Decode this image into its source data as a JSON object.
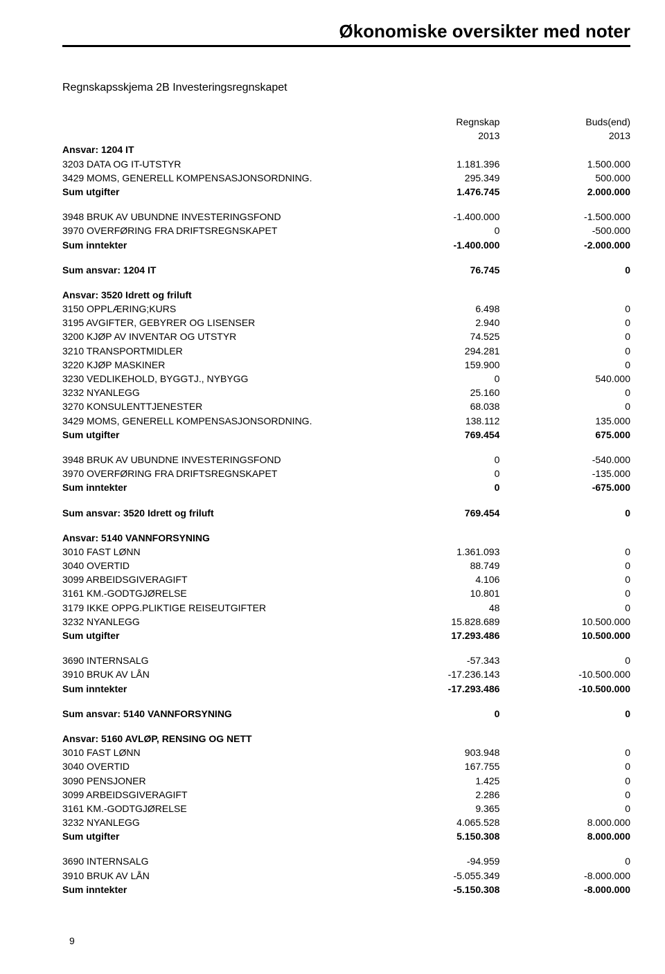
{
  "header": {
    "title": "Økonomiske oversikter med noter"
  },
  "section_title": "Regnskapsskjema 2B Investeringsregnskapet",
  "columns": {
    "c1_line1": "Regnskap",
    "c1_line2": "2013",
    "c2_line1": "Buds(end)",
    "c2_line2": "2013"
  },
  "blocks": [
    {
      "heading": "Ansvar: 1204 IT",
      "rows": [
        {
          "label": "3203 DATA OG IT-UTSTYR",
          "v1": "1.181.396",
          "v2": "1.500.000"
        },
        {
          "label": "3429 MOMS, GENERELL KOMPENSASJONSORDNING.",
          "v1": "295.349",
          "v2": "500.000"
        }
      ],
      "sum_out": {
        "label": "Sum utgifter",
        "v1": "1.476.745",
        "v2": "2.000.000"
      },
      "rows2": [
        {
          "label": "3948 BRUK AV UBUNDNE INVESTERINGSFOND",
          "v1": "-1.400.000",
          "v2": "-1.500.000"
        },
        {
          "label": "3970 OVERFØRING FRA DRIFTSREGNSKAPET",
          "v1": "0",
          "v2": "-500.000"
        }
      ],
      "sum_in": {
        "label": "Sum inntekter",
        "v1": "-1.400.000",
        "v2": "-2.000.000"
      },
      "sum_ansvar": {
        "label": "Sum ansvar: 1204 IT",
        "v1": "76.745",
        "v2": "0"
      }
    },
    {
      "heading": "Ansvar: 3520 Idrett og friluft",
      "rows": [
        {
          "label": "3150 OPPLÆRING;KURS",
          "v1": "6.498",
          "v2": "0"
        },
        {
          "label": "3195 AVGIFTER, GEBYRER OG LISENSER",
          "v1": "2.940",
          "v2": "0"
        },
        {
          "label": "3200 KJØP AV INVENTAR OG UTSTYR",
          "v1": "74.525",
          "v2": "0"
        },
        {
          "label": "3210 TRANSPORTMIDLER",
          "v1": "294.281",
          "v2": "0"
        },
        {
          "label": "3220 KJØP MASKINER",
          "v1": "159.900",
          "v2": "0"
        },
        {
          "label": "3230 VEDLIKEHOLD, BYGGTJ., NYBYGG",
          "v1": "0",
          "v2": "540.000"
        },
        {
          "label": "3232 NYANLEGG",
          "v1": "25.160",
          "v2": "0"
        },
        {
          "label": "3270 KONSULENTTJENESTER",
          "v1": "68.038",
          "v2": "0"
        },
        {
          "label": "3429 MOMS, GENERELL KOMPENSASJONSORDNING.",
          "v1": "138.112",
          "v2": "135.000"
        }
      ],
      "sum_out": {
        "label": "Sum utgifter",
        "v1": "769.454",
        "v2": "675.000"
      },
      "rows2": [
        {
          "label": "3948 BRUK AV UBUNDNE INVESTERINGSFOND",
          "v1": "0",
          "v2": "-540.000"
        },
        {
          "label": "3970 OVERFØRING FRA DRIFTSREGNSKAPET",
          "v1": "0",
          "v2": "-135.000"
        }
      ],
      "sum_in": {
        "label": "Sum inntekter",
        "v1": "0",
        "v2": "-675.000"
      },
      "sum_ansvar": {
        "label": "Sum ansvar: 3520 Idrett og friluft",
        "v1": "769.454",
        "v2": "0"
      }
    },
    {
      "heading": "Ansvar: 5140 VANNFORSYNING",
      "rows": [
        {
          "label": "3010 FAST LØNN",
          "v1": "1.361.093",
          "v2": "0"
        },
        {
          "label": "3040 OVERTID",
          "v1": "88.749",
          "v2": "0"
        },
        {
          "label": "3099 ARBEIDSGIVERAGIFT",
          "v1": "4.106",
          "v2": "0"
        },
        {
          "label": "3161 KM.-GODTGJØRELSE",
          "v1": "10.801",
          "v2": "0"
        },
        {
          "label": "3179 IKKE OPPG.PLIKTIGE REISEUTGIFTER",
          "v1": "48",
          "v2": "0"
        },
        {
          "label": "3232 NYANLEGG",
          "v1": "15.828.689",
          "v2": "10.500.000"
        }
      ],
      "sum_out": {
        "label": "Sum utgifter",
        "v1": "17.293.486",
        "v2": "10.500.000"
      },
      "rows2": [
        {
          "label": "3690 INTERNSALG",
          "v1": "-57.343",
          "v2": "0"
        },
        {
          "label": "3910 BRUK AV LÅN",
          "v1": "-17.236.143",
          "v2": "-10.500.000"
        }
      ],
      "sum_in": {
        "label": "Sum inntekter",
        "v1": "-17.293.486",
        "v2": "-10.500.000"
      },
      "sum_ansvar": {
        "label": "Sum ansvar: 5140 VANNFORSYNING",
        "v1": "0",
        "v2": "0"
      }
    },
    {
      "heading": "Ansvar: 5160 AVLØP, RENSING OG NETT",
      "rows": [
        {
          "label": "3010 FAST LØNN",
          "v1": "903.948",
          "v2": "0"
        },
        {
          "label": "3040 OVERTID",
          "v1": "167.755",
          "v2": "0"
        },
        {
          "label": "3090 PENSJONER",
          "v1": "1.425",
          "v2": "0"
        },
        {
          "label": "3099 ARBEIDSGIVERAGIFT",
          "v1": "2.286",
          "v2": "0"
        },
        {
          "label": "3161 KM.-GODTGJØRELSE",
          "v1": "9.365",
          "v2": "0"
        },
        {
          "label": "3232 NYANLEGG",
          "v1": "4.065.528",
          "v2": "8.000.000"
        }
      ],
      "sum_out": {
        "label": "Sum utgifter",
        "v1": "5.150.308",
        "v2": "8.000.000"
      },
      "rows2": [
        {
          "label": "3690 INTERNSALG",
          "v1": "-94.959",
          "v2": "0"
        },
        {
          "label": "3910 BRUK AV LÅN",
          "v1": "-5.055.349",
          "v2": "-8.000.000"
        }
      ],
      "sum_in": {
        "label": "Sum inntekter",
        "v1": "-5.150.308",
        "v2": "-8.000.000"
      },
      "sum_ansvar": null
    }
  ],
  "page_number": "9"
}
